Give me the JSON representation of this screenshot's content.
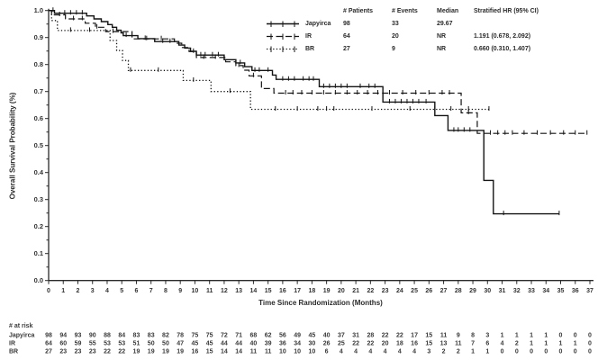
{
  "chart_data": {
    "type": "line",
    "subtype": "kaplan-meier-step",
    "title": "",
    "xlabel": "Time Since Randomization (Months)",
    "ylabel": "Overall Survival Probability (%)",
    "xlim": [
      0,
      37
    ],
    "xtick_step": 1,
    "ylim": [
      0.0,
      1.0
    ],
    "ytick_step": 0.1,
    "ytick_minor_step": 0.05,
    "grid": "off",
    "legend_position": "top-right",
    "line_color": "#141414",
    "at_risk_label": "# at risk",
    "legend_headers": {
      "patients": "# Patients",
      "events": "# Events",
      "median": "Median",
      "hr": "Stratified HR (95% CI)"
    },
    "series": [
      {
        "name": "Japyirca",
        "style": "solid",
        "patients": "98",
        "events": "33",
        "median": "29.67",
        "hr": "",
        "steps": [
          [
            0,
            1.0
          ],
          [
            0.4,
            0.99
          ],
          [
            2.6,
            0.98
          ],
          [
            3.1,
            0.969
          ],
          [
            3.6,
            0.959
          ],
          [
            4.05,
            0.948
          ],
          [
            4.35,
            0.938
          ],
          [
            4.65,
            0.927
          ],
          [
            4.95,
            0.917
          ],
          [
            5.1,
            0.907
          ],
          [
            6.1,
            0.896
          ],
          [
            7.25,
            0.885
          ],
          [
            8.9,
            0.872
          ],
          [
            9.3,
            0.861
          ],
          [
            9.7,
            0.849
          ],
          [
            10.1,
            0.835
          ],
          [
            12.0,
            0.818
          ],
          [
            12.8,
            0.806
          ],
          [
            13.4,
            0.792
          ],
          [
            13.9,
            0.778
          ],
          [
            15.3,
            0.761
          ],
          [
            15.55,
            0.745
          ],
          [
            18.5,
            0.718
          ],
          [
            22.85,
            0.661
          ],
          [
            26.4,
            0.611
          ],
          [
            27.3,
            0.556
          ],
          [
            29.75,
            0.371
          ],
          [
            30.4,
            0.247
          ]
        ],
        "end": 34.9,
        "censors": [
          0.3,
          1.1,
          1.5,
          1.9,
          2.3,
          5.3,
          6.6,
          7.8,
          8.3,
          10.4,
          10.7,
          11.2,
          11.6,
          13.1,
          14.1,
          14.4,
          15.0,
          16.0,
          16.4,
          16.8,
          17.4,
          17.8,
          18.1,
          18.8,
          19.2,
          19.6,
          20.0,
          20.4,
          21.3,
          21.9,
          22.3,
          23.3,
          23.7,
          24.1,
          24.5,
          24.9,
          25.3,
          25.8,
          27.7,
          28.0,
          28.4,
          28.8,
          31.1,
          34.9
        ],
        "at_risk": [
          98,
          94,
          93,
          90,
          88,
          84,
          83,
          83,
          82,
          78,
          75,
          75,
          72,
          71,
          68,
          62,
          56,
          49,
          45,
          40,
          37,
          31,
          28,
          22,
          22,
          17,
          15,
          11,
          9,
          8,
          3,
          1,
          1,
          1,
          1,
          0,
          0,
          0
        ]
      },
      {
        "name": "IR",
        "style": "dashed",
        "patients": "64",
        "events": "20",
        "median": "NR",
        "hr": "1.191 (0.678, 2.092)",
        "steps": [
          [
            0,
            1.0
          ],
          [
            0.2,
            0.984
          ],
          [
            1.15,
            0.969
          ],
          [
            2.5,
            0.953
          ],
          [
            3.2,
            0.938
          ],
          [
            3.9,
            0.922
          ],
          [
            5.7,
            0.895
          ],
          [
            8.6,
            0.879
          ],
          [
            9.1,
            0.863
          ],
          [
            9.6,
            0.848
          ],
          [
            10.1,
            0.826
          ],
          [
            12.1,
            0.81
          ],
          [
            12.8,
            0.796
          ],
          [
            13.3,
            0.779
          ],
          [
            13.7,
            0.758
          ],
          [
            14.55,
            0.711
          ],
          [
            15.4,
            0.694
          ],
          [
            28.2,
            0.621
          ],
          [
            29.3,
            0.545
          ]
        ],
        "end": 36.85,
        "censors": [
          0.75,
          1.7,
          2.3,
          3.3,
          4.4,
          6.7,
          7.7,
          9.9,
          10.6,
          11.4,
          13.0,
          14.0,
          16.2,
          16.7,
          17.3,
          18.0,
          18.8,
          19.6,
          20.4,
          21.1,
          21.8,
          22.5,
          23.3,
          24.2,
          25.1,
          26.0,
          26.9,
          27.4,
          28.7,
          30.2,
          30.7,
          31.2,
          31.7,
          32.5,
          33.4,
          34.3,
          35.2,
          36.0,
          36.8
        ],
        "at_risk": [
          64,
          60,
          59,
          55,
          53,
          53,
          51,
          50,
          50,
          47,
          45,
          45,
          44,
          44,
          40,
          39,
          36,
          34,
          30,
          26,
          25,
          22,
          22,
          20,
          18,
          16,
          15,
          13,
          11,
          7,
          6,
          4,
          2,
          1,
          1,
          1,
          1,
          0
        ]
      },
      {
        "name": "BR",
        "style": "dotted",
        "patients": "27",
        "events": "9",
        "median": "NR",
        "hr": "0.660 (0.310, 1.407)",
        "steps": [
          [
            0,
            1.0
          ],
          [
            0.2,
            0.963
          ],
          [
            0.6,
            0.926
          ],
          [
            4.2,
            0.889
          ],
          [
            4.65,
            0.852
          ],
          [
            5.05,
            0.815
          ],
          [
            5.45,
            0.778
          ],
          [
            9.2,
            0.741
          ],
          [
            11.1,
            0.7
          ],
          [
            13.8,
            0.634
          ]
        ],
        "end": 30.25,
        "censors": [
          1.5,
          2.8,
          5.6,
          7.5,
          9.9,
          12.4,
          15.5,
          17.0,
          18.4,
          19.0,
          19.5,
          22.1,
          24.7,
          26.4,
          27.5,
          28.7,
          30.1
        ],
        "at_risk": [
          27,
          23,
          23,
          23,
          22,
          22,
          19,
          19,
          19,
          19,
          16,
          15,
          14,
          14,
          11,
          11,
          10,
          10,
          10,
          6,
          4,
          4,
          4,
          4,
          4,
          4,
          3,
          2,
          2,
          1,
          1,
          0,
          0,
          0,
          0,
          0,
          0,
          0
        ]
      }
    ]
  }
}
